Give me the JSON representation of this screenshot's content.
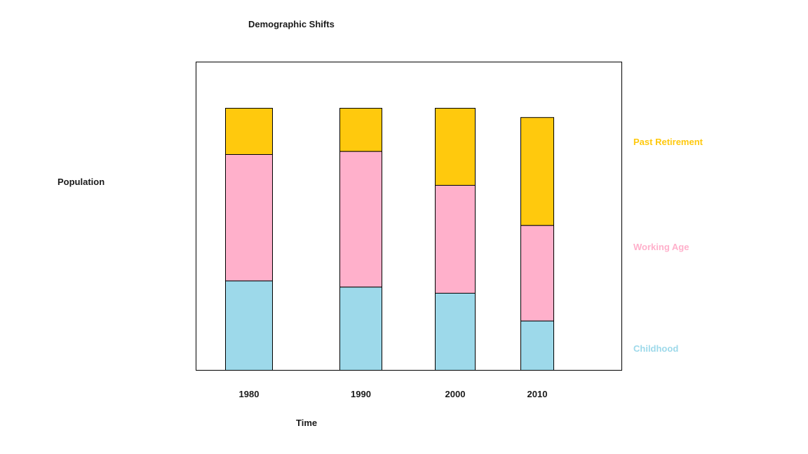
{
  "chart_data": {
    "type": "bar",
    "stacked": true,
    "title": "Demographic Shifts",
    "xlabel": "Time",
    "ylabel": "Population",
    "categories": [
      "1980",
      "1990",
      "2000",
      "2010"
    ],
    "series": [
      {
        "name": "Childhood",
        "color": "#9dd9ea",
        "values": [
          29,
          27,
          25,
          16
        ]
      },
      {
        "name": "Working Age",
        "color": "#ffb0cb",
        "values": [
          41,
          44,
          35,
          31
        ]
      },
      {
        "name": "Past Retirement",
        "color": "#ffc90d",
        "values": [
          15,
          14,
          25,
          35
        ]
      }
    ],
    "ylim": [
      0,
      100
    ],
    "grid": false,
    "legend": "right"
  }
}
